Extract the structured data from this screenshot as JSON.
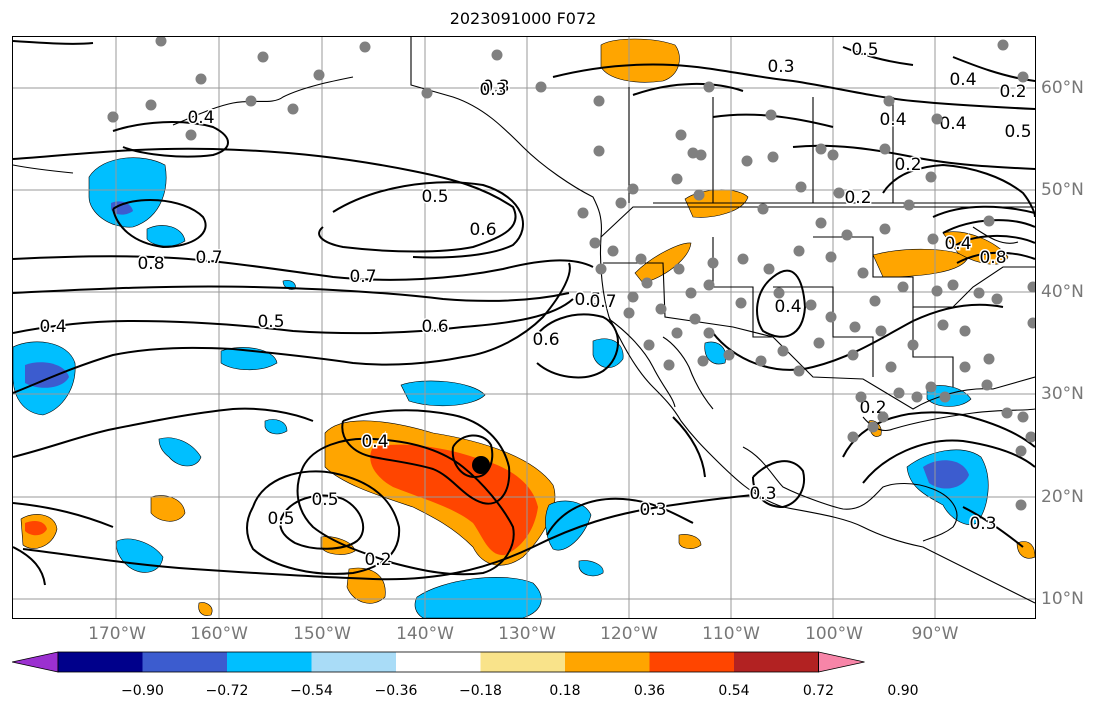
{
  "title": "2023091000 F072",
  "lon_labels": [
    "170°W",
    "160°W",
    "150°W",
    "140°W",
    "130°W",
    "120°W",
    "110°W",
    "100°W",
    "90°W"
  ],
  "lat_labels": [
    "60°N",
    "50°N",
    "40°N",
    "30°N",
    "20°N",
    "10°N"
  ],
  "colorbar": {
    "ticks": [
      "−0.90",
      "−0.72",
      "−0.54",
      "−0.36",
      "−0.18",
      "0.18",
      "0.36",
      "0.54",
      "0.72",
      "0.90"
    ],
    "colors": [
      "#9b30d0",
      "#00008b",
      "#3c5ccf",
      "#00bfff",
      "#a9dcf7",
      "#ffffff",
      "#f9e38a",
      "#ffa500",
      "#ff4500",
      "#b22222",
      "#f785a8"
    ]
  },
  "contour_labels": [
    "0.3",
    "0.4",
    "0.5",
    "0.6",
    "0.7",
    "0.8",
    "0.7",
    "0.6",
    "0.5",
    "0.4",
    "0.5",
    "0.4",
    "0.3",
    "0.3",
    "0.2",
    "0.6",
    "0.5",
    "0.4",
    "0.5",
    "0.4",
    "0.2",
    "0.3",
    "0.3",
    "0.2",
    "0.4",
    "0.2",
    "0.5",
    "0.3",
    "0.5",
    "0.4",
    "0.2",
    "0.7",
    "0.8",
    "0.4"
  ],
  "colors": {
    "grid": "#999999",
    "contour": "#000000",
    "coast": "#000000",
    "station": "#808080",
    "center": "#000000"
  }
}
